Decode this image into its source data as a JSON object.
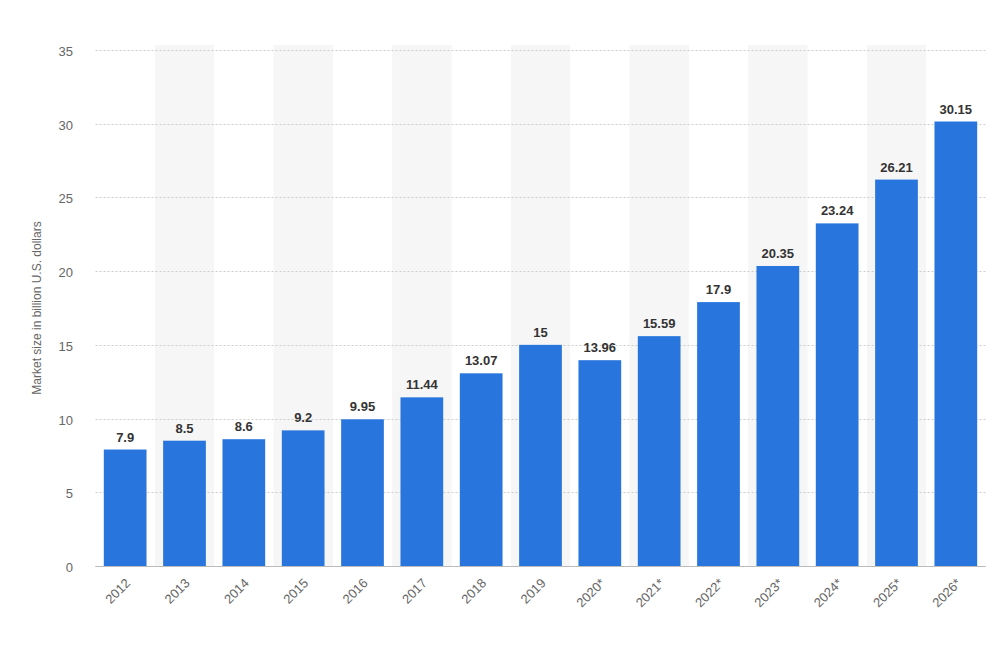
{
  "chart_data": {
    "type": "bar",
    "y_label": "Market size in billion U.S. dollars",
    "categories": [
      "2012",
      "2013",
      "2014",
      "2015",
      "2016",
      "2017",
      "2018",
      "2019",
      "2020*",
      "2021*",
      "2022*",
      "2023*",
      "2024*",
      "2025*",
      "2026*"
    ],
    "values": [
      7.9,
      8.5,
      8.6,
      9.2,
      9.95,
      11.44,
      13.07,
      15,
      13.96,
      15.59,
      17.9,
      20.35,
      23.24,
      26.21,
      30.15
    ],
    "color": "#2876dd",
    "ylim": [
      0,
      35
    ],
    "yticks": [
      0,
      5,
      10,
      15,
      20,
      25,
      30,
      35
    ],
    "grid": true,
    "data_labels": true
  }
}
